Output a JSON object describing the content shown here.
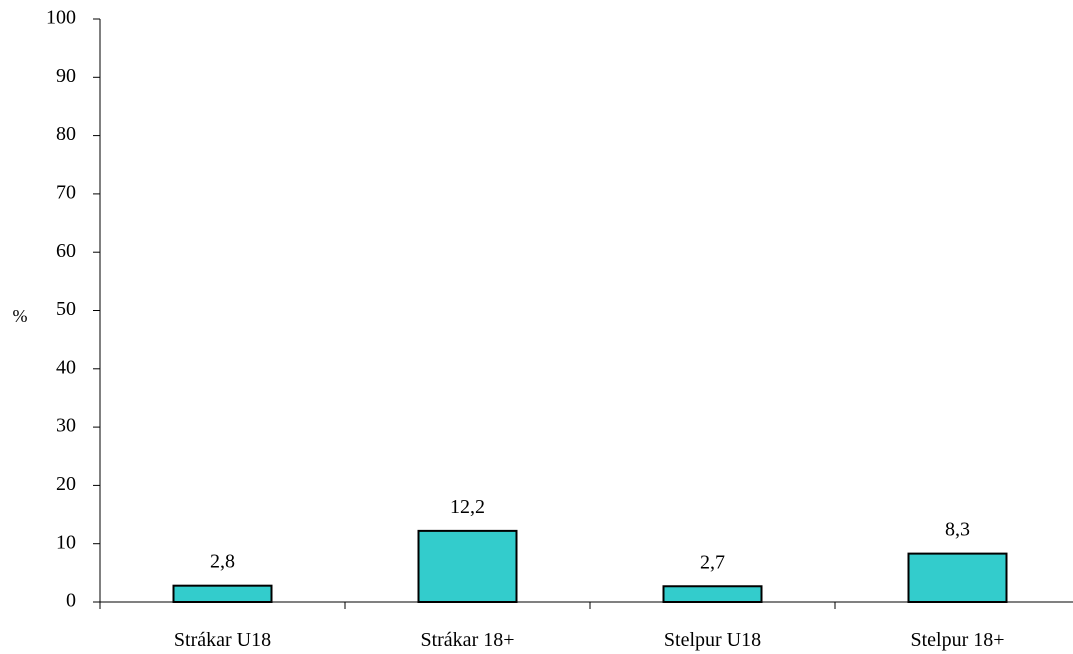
{
  "chart_data": {
    "type": "bar",
    "categories": [
      "Strákar U18",
      "Strákar 18+",
      "Stelpur U18",
      "Stelpur 18+"
    ],
    "values": [
      2.8,
      12.2,
      2.7,
      8.3
    ],
    "data_labels": [
      "2,8",
      "12,2",
      "2,7",
      "8,3"
    ],
    "title": "",
    "xlabel": "",
    "ylabel": "%",
    "ylim": [
      0,
      100
    ],
    "yticks": [
      0,
      10,
      20,
      30,
      40,
      50,
      60,
      70,
      80,
      90,
      100
    ],
    "grid": false,
    "legend": "none",
    "colors": {
      "bar_fill": "#33CCCC",
      "bar_stroke": "#000000",
      "axis": "#000000"
    }
  }
}
